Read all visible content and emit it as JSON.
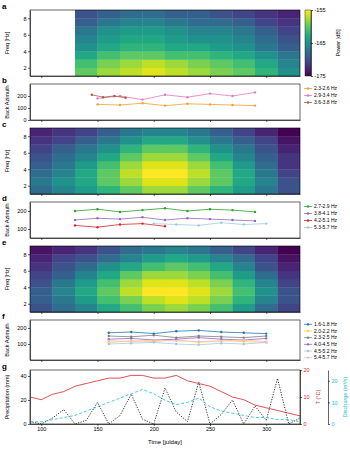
{
  "chart_data": [
    {
      "type": "heatmap",
      "title": "a",
      "y_label": "Freq [Hz]",
      "colorbar_label": "Power [dB]",
      "xlim": [
        90,
        330
      ],
      "xticks": [
        100,
        150,
        200,
        250,
        300
      ],
      "ylim": [
        1,
        9
      ],
      "yticks": [
        2,
        4,
        6,
        8
      ],
      "tick_labels": "y",
      "x_edges": [
        90,
        110,
        130,
        150,
        170,
        190,
        210,
        230,
        250,
        270,
        290,
        310,
        330
      ],
      "y_edges": [
        1,
        2,
        3,
        4,
        5,
        6,
        7,
        8,
        9
      ],
      "color_range": [
        -175,
        -155
      ],
      "colorbar_ticks": [
        -175,
        -165,
        -155
      ],
      "cells": [
        [
          null,
          null,
          -160,
          -158,
          -157,
          -156,
          -157,
          -158,
          -159,
          -160,
          -162,
          -165
        ],
        [
          null,
          null,
          -161,
          -159,
          -158,
          -157,
          -158,
          -159,
          -160,
          -161,
          -163,
          -166
        ],
        [
          null,
          null,
          -163,
          -161,
          -160,
          -160,
          -161,
          -161,
          -162,
          -163,
          -165,
          -167
        ],
        [
          null,
          null,
          -165,
          -163,
          -162,
          -162,
          -163,
          -163,
          -164,
          -165,
          -167,
          -169
        ],
        [
          null,
          null,
          -166,
          -164,
          -163,
          -163,
          -164,
          -165,
          -165,
          -166,
          -168,
          -170
        ],
        [
          null,
          null,
          -167,
          -165,
          -164,
          -164,
          -165,
          -166,
          -166,
          -167,
          -169,
          -171
        ],
        [
          null,
          null,
          -169,
          -167,
          -166,
          -166,
          -167,
          -168,
          -168,
          -169,
          -171,
          -172
        ],
        [
          null,
          null,
          -170,
          -169,
          -168,
          -168,
          -169,
          -169,
          -170,
          -171,
          -172,
          -173
        ]
      ]
    },
    {
      "type": "line",
      "title": "b",
      "y_label": "Back Azimuth",
      "marker": "o",
      "line_style": "solid",
      "xlim": [
        90,
        330
      ],
      "xticks": [
        100,
        150,
        200,
        250,
        300
      ],
      "ylim": [
        0,
        300
      ],
      "yticks": [
        0,
        100,
        200
      ],
      "tick_labels": "y",
      "series": [
        {
          "name": "2.3-2.6 Hz",
          "color": "#f0a030",
          "x": [
            150,
            170,
            190,
            210,
            230,
            250,
            270,
            290
          ],
          "values": [
            130,
            125,
            140,
            120,
            135,
            130,
            125,
            120
          ]
        },
        {
          "name": "2.9-3.4 Hz",
          "color": "#e377c2",
          "x": [
            150,
            170,
            190,
            210,
            230,
            250,
            270,
            290
          ],
          "values": [
            180,
            200,
            170,
            210,
            190,
            220,
            200,
            230
          ]
        },
        {
          "name": "3.6-3.8 Hz",
          "color": "#b05a3c",
          "x": [
            145,
            155,
            165,
            175
          ],
          "values": [
            210,
            190,
            200,
            185
          ]
        }
      ]
    },
    {
      "type": "heatmap",
      "title": "c",
      "y_label": "Freq [Hz]",
      "xlim": [
        90,
        330
      ],
      "xticks": [
        100,
        150,
        200,
        250,
        300
      ],
      "ylim": [
        1,
        9
      ],
      "yticks": [
        2,
        4,
        6,
        8
      ],
      "tick_labels": "y",
      "x_edges": [
        90,
        110,
        130,
        150,
        170,
        190,
        210,
        230,
        250,
        270,
        290,
        310,
        330
      ],
      "y_edges": [
        1,
        2,
        3,
        4,
        5,
        6,
        7,
        8,
        9
      ],
      "color_range": [
        -175,
        -155
      ],
      "cells": [
        [
          -168,
          -166,
          -164,
          -162,
          -160,
          -158,
          -158,
          -160,
          -162,
          -164,
          -167,
          -170
        ],
        [
          -167,
          -165,
          -163,
          -160,
          -158,
          -156,
          -156,
          -158,
          -160,
          -163,
          -166,
          -170
        ],
        [
          -168,
          -166,
          -163,
          -160,
          -157,
          -155,
          -155,
          -157,
          -160,
          -163,
          -167,
          -171
        ],
        [
          -169,
          -167,
          -164,
          -161,
          -158,
          -156,
          -156,
          -158,
          -161,
          -164,
          -168,
          -172
        ],
        [
          -170,
          -168,
          -166,
          -163,
          -160,
          -158,
          -158,
          -160,
          -163,
          -166,
          -169,
          -172
        ],
        [
          -171,
          -169,
          -167,
          -165,
          -162,
          -160,
          -160,
          -162,
          -165,
          -167,
          -170,
          -173
        ],
        [
          -172,
          -171,
          -169,
          -167,
          -165,
          -163,
          -163,
          -165,
          -167,
          -169,
          -171,
          -174
        ],
        [
          -173,
          -172,
          -171,
          -169,
          -167,
          -166,
          -166,
          -167,
          -169,
          -171,
          -173,
          -175
        ]
      ]
    },
    {
      "type": "line",
      "title": "d",
      "y_label": "Back Azimuth",
      "marker": "o",
      "line_style": "solid",
      "xlim": [
        90,
        330
      ],
      "xticks": [
        100,
        150,
        200,
        250,
        300
      ],
      "ylim": [
        50,
        250
      ],
      "yticks": [
        100,
        200
      ],
      "tick_labels": "y",
      "series": [
        {
          "name": "2.7-2.9 Hz",
          "color": "#2ca02c",
          "x": [
            130,
            150,
            170,
            190,
            210,
            230,
            250,
            270,
            290
          ],
          "values": [
            200,
            210,
            195,
            205,
            215,
            200,
            210,
            205,
            195
          ]
        },
        {
          "name": "3.8-4.1 Hz",
          "color": "#9467bd",
          "x": [
            130,
            150,
            170,
            190,
            210,
            230,
            250,
            270,
            290
          ],
          "values": [
            150,
            160,
            155,
            165,
            150,
            160,
            155,
            150,
            145
          ]
        },
        {
          "name": "4.2-5.1 Hz",
          "color": "#d62728",
          "x": [
            130,
            150,
            170,
            190,
            210
          ],
          "values": [
            120,
            110,
            125,
            130,
            115
          ]
        },
        {
          "name": "5.3-5.7 Hz",
          "color": "#9ecae1",
          "x": [
            200,
            220,
            240,
            260,
            280,
            300
          ],
          "values": [
            130,
            125,
            120,
            135,
            125,
            130
          ]
        }
      ]
    },
    {
      "type": "heatmap",
      "title": "e",
      "y_label": "Freq [Hz]",
      "xlim": [
        90,
        330
      ],
      "xticks": [
        100,
        150,
        200,
        250,
        300
      ],
      "ylim": [
        1,
        9
      ],
      "yticks": [
        2,
        4,
        6,
        8
      ],
      "tick_labels": "y",
      "x_edges": [
        90,
        110,
        130,
        150,
        170,
        190,
        210,
        230,
        250,
        270,
        290,
        310,
        330
      ],
      "y_edges": [
        1,
        2,
        3,
        4,
        5,
        6,
        7,
        8,
        9
      ],
      "color_range": [
        -175,
        -155
      ],
      "cells": [
        [
          -170,
          -168,
          -166,
          -163,
          -161,
          -159,
          -158,
          -159,
          -161,
          -164,
          -168,
          -171
        ],
        [
          -169,
          -167,
          -164,
          -161,
          -159,
          -157,
          -156,
          -157,
          -159,
          -162,
          -166,
          -170
        ],
        [
          -169,
          -166,
          -163,
          -160,
          -157,
          -155,
          -155,
          -156,
          -158,
          -161,
          -165,
          -170
        ],
        [
          -170,
          -167,
          -164,
          -161,
          -158,
          -156,
          -156,
          -157,
          -159,
          -162,
          -166,
          -171
        ],
        [
          -171,
          -169,
          -166,
          -163,
          -160,
          -158,
          -158,
          -159,
          -161,
          -164,
          -168,
          -172
        ],
        [
          -172,
          -170,
          -168,
          -165,
          -163,
          -161,
          -160,
          -161,
          -163,
          -166,
          -170,
          -173
        ],
        [
          -173,
          -171,
          -170,
          -168,
          -166,
          -164,
          -163,
          -164,
          -166,
          -168,
          -171,
          -174
        ],
        [
          -174,
          -173,
          -172,
          -170,
          -168,
          -167,
          -166,
          -167,
          -169,
          -171,
          -173,
          -175
        ]
      ]
    },
    {
      "type": "line",
      "title": "f",
      "y_label": "Back Azimuth",
      "marker": "o",
      "line_style": "solid",
      "xlim": [
        90,
        330
      ],
      "xticks": [
        100,
        150,
        200,
        250,
        300
      ],
      "ylim": [
        0,
        250
      ],
      "yticks": [
        100,
        200
      ],
      "tick_labels": "y",
      "series": [
        {
          "name": "1.6-1.8 Hz",
          "color": "#1f77b4",
          "x": [
            160,
            180,
            200,
            220,
            240,
            260,
            280,
            300
          ],
          "values": [
            170,
            175,
            165,
            180,
            185,
            175,
            170,
            165
          ]
        },
        {
          "name": "2.0-2.2 Hz",
          "color": "#ffd92f",
          "x": [
            160,
            180,
            200,
            220,
            240,
            260,
            280,
            300
          ],
          "values": [
            110,
            120,
            115,
            125,
            110,
            120,
            115,
            110
          ]
        },
        {
          "name": "2.3-2.5 Hz",
          "color": "#7f7f7f",
          "x": [
            160,
            180,
            200,
            220,
            240,
            260,
            280,
            300
          ],
          "values": [
            150,
            145,
            155,
            140,
            150,
            145,
            140,
            150
          ]
        },
        {
          "name": "4.0-4.5 Hz",
          "color": "#9467bd",
          "x": [
            160,
            180,
            200,
            220,
            240,
            260,
            280,
            300
          ],
          "values": [
            130,
            135,
            125,
            130,
            140,
            130,
            125,
            135
          ]
        },
        {
          "name": "4.5-5.2 Hz",
          "color": "#9ecae1",
          "x": [
            160,
            180,
            200,
            220,
            240,
            260,
            280,
            300
          ],
          "values": [
            100,
            105,
            110,
            100,
            95,
            105,
            100,
            110
          ]
        },
        {
          "name": "5.4-5.7 Hz",
          "color": "#f7b6d2",
          "x": [
            160,
            180,
            200,
            220,
            240,
            260,
            280,
            300
          ],
          "values": [
            120,
            115,
            125,
            120,
            115,
            120,
            125,
            115
          ]
        }
      ]
    },
    {
      "type": "line",
      "title": "g",
      "x_label": "Time [julday]",
      "y_label": "Precipitation (mm)",
      "y2_label": "T (°C)",
      "y3_label": "Discharge (m³/s)",
      "xlim": [
        90,
        330
      ],
      "xticks": [
        100,
        150,
        200,
        250,
        300
      ],
      "ylim": [
        0,
        45
      ],
      "yticks": [
        0,
        20,
        40
      ],
      "y2lim": [
        0,
        20
      ],
      "y2ticks": [
        0,
        10,
        20
      ],
      "y3lim": [
        0,
        25
      ],
      "y3ticks": [
        0,
        10,
        20
      ],
      "x": [
        90,
        100,
        110,
        120,
        130,
        140,
        150,
        160,
        170,
        180,
        190,
        200,
        210,
        220,
        230,
        240,
        250,
        260,
        270,
        280,
        290,
        300,
        310,
        320,
        330
      ],
      "series": [
        {
          "name": "Precipitation",
          "color": "#000000",
          "line_style": "dotted",
          "values": [
            2,
            0,
            5,
            12,
            0,
            3,
            18,
            0,
            7,
            25,
            4,
            0,
            30,
            10,
            2,
            35,
            0,
            8,
            20,
            0,
            15,
            3,
            38,
            0,
            5
          ]
        },
        {
          "name": "T",
          "color": "#d62728",
          "line_style": "solid",
          "axis": "y2",
          "values": [
            10,
            9,
            11,
            12,
            14,
            15,
            16,
            17,
            17,
            18,
            18,
            17,
            17,
            18,
            16,
            15,
            14,
            12,
            10,
            9,
            7,
            6,
            5,
            4,
            3
          ]
        },
        {
          "name": "Discharge",
          "color": "#17becf",
          "line_style": "dashed",
          "axis": "y3",
          "values": [
            1,
            1,
            2,
            3,
            4,
            6,
            8,
            10,
            12,
            14,
            16,
            14,
            11,
            9,
            10,
            12,
            8,
            6,
            5,
            4,
            3,
            3,
            2,
            2,
            1
          ]
        }
      ]
    }
  ]
}
